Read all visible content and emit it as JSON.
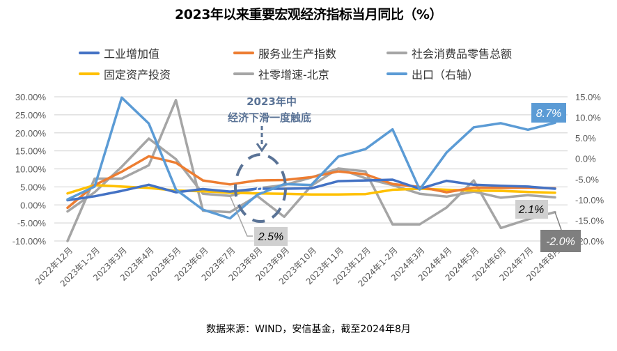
{
  "chart_data": {
    "type": "line",
    "title": "2023年以来重要宏观经济指标当月同比（%）",
    "categories": [
      "2022年12月",
      "2023年1-2月",
      "2023年3月",
      "2023年4月",
      "2023年5月",
      "2023年6月",
      "2023年7月",
      "2023年8月",
      "2023年9月",
      "2023年10月",
      "2023年11月",
      "2023年12月",
      "2024年1-2月",
      "2024年3月",
      "2024年4月",
      "2024年5月",
      "2024年6月",
      "2024年7月",
      "2024年8月"
    ],
    "y_left": {
      "ylim": [
        -10,
        30
      ],
      "ticks": [
        "-10.00%",
        "-5.00%",
        "0.00%",
        "5.00%",
        "10.00%",
        "15.00%",
        "20.00%",
        "25.00%",
        "30.00%"
      ],
      "tick_values": [
        -10,
        -5,
        0,
        5,
        10,
        15,
        20,
        25,
        30
      ]
    },
    "y_right": {
      "ylim": [
        -20,
        15
      ],
      "ticks": [
        "-20.0%",
        "-15.0%",
        "-10.0%",
        "-5.0%",
        "0.0%",
        "5.0%",
        "10.0%",
        "15.0%"
      ],
      "tick_values": [
        -20,
        -15,
        -10,
        -5,
        0,
        5,
        10,
        15
      ]
    },
    "grid": true,
    "legend_position": "top",
    "series": [
      {
        "name": "工业增加值",
        "color": "#4472c4",
        "axis": "left",
        "values": [
          1.3,
          2.4,
          3.9,
          5.6,
          3.5,
          4.4,
          3.7,
          4.5,
          4.5,
          4.6,
          6.6,
          6.8,
          7.0,
          4.5,
          6.7,
          5.6,
          5.3,
          5.1,
          4.5
        ]
      },
      {
        "name": "服务业生产指数",
        "color": "#ed7d31",
        "axis": "left",
        "values": [
          -0.8,
          5.5,
          9.2,
          13.5,
          11.7,
          6.8,
          5.7,
          6.8,
          6.9,
          7.7,
          9.3,
          8.5,
          5.8,
          5.0,
          3.5,
          4.8,
          4.7,
          4.8,
          4.6
        ]
      },
      {
        "name": "社会消费品零售总额",
        "color": "#a5a5a5",
        "axis": "left",
        "values": [
          -1.8,
          3.5,
          10.6,
          18.4,
          12.7,
          3.1,
          2.5,
          4.6,
          5.5,
          7.6,
          10.1,
          7.4,
          5.5,
          3.1,
          2.3,
          3.7,
          2.0,
          2.7,
          2.1
        ]
      },
      {
        "name": "固定资产投资",
        "color": "#ffc000",
        "axis": "left",
        "values": [
          3.2,
          5.5,
          5.1,
          4.7,
          4.0,
          3.8,
          3.4,
          3.2,
          3.1,
          2.9,
          2.9,
          3.0,
          4.2,
          4.5,
          4.2,
          4.0,
          3.9,
          3.6,
          3.4
        ]
      },
      {
        "name": "社零增速-北京",
        "color": "#a5a5a5",
        "axis": "left",
        "values": [
          -10.0,
          7.3,
          7.3,
          11.0,
          29.1,
          -1.6,
          -2.0,
          2.5,
          -3.3,
          5.3,
          10.1,
          9.3,
          -5.4,
          -5.4,
          -0.7,
          6.8,
          -6.4,
          -4.0,
          -2.0
        ]
      },
      {
        "name": "出口（右轴）",
        "color": "#5b9bd5",
        "axis": "right",
        "values": [
          -9.9,
          -6.8,
          14.8,
          8.5,
          -7.5,
          -12.4,
          -14.5,
          -8.8,
          -6.2,
          -6.4,
          0.5,
          2.3,
          7.1,
          -7.5,
          1.5,
          7.6,
          8.6,
          7.0,
          8.7
        ]
      }
    ],
    "annotations": {
      "trough_title_line1": "2023年中",
      "trough_title_line2": "经济下滑一度触底",
      "trough_marker": "a",
      "label_beijing_2023_8": "2.5%",
      "label_retail_2024_8": "2.1%",
      "label_beijing_2024_8": "-2.0%",
      "label_export_2024_8": "8.7%"
    }
  },
  "legend": [
    {
      "name": "工业增加值",
      "color": "#4472c4"
    },
    {
      "name": "服务业生产指数",
      "color": "#ed7d31"
    },
    {
      "name": "社会消费品零售总额",
      "color": "#a5a5a5"
    },
    {
      "name": "固定资产投资",
      "color": "#ffc000"
    },
    {
      "name": "社零增速-北京",
      "color": "#a5a5a5"
    },
    {
      "name": "出口（右轴）",
      "color": "#5b9bd5"
    }
  ],
  "source": "数据来源：WIND，安信基金，截至2024年8月"
}
